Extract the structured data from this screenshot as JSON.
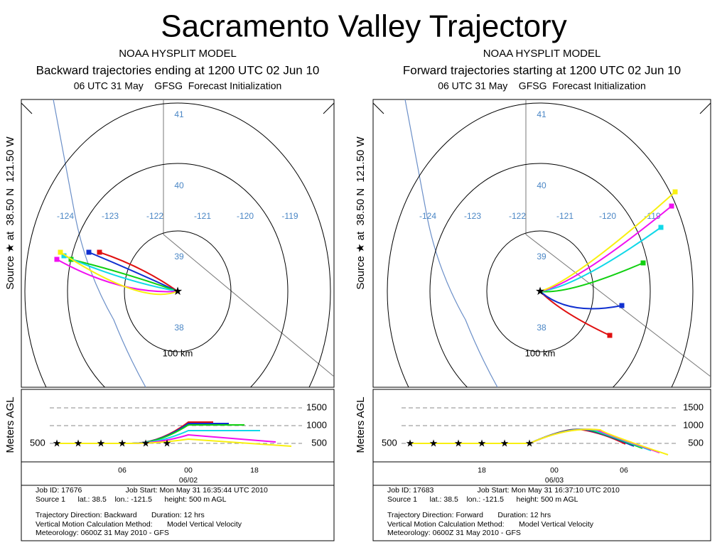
{
  "title": "Sacramento Valley Trajectory",
  "panels": [
    {
      "model": "NOAA HYSPLIT MODEL",
      "subtitle": "Backward trajectories ending at 1200 UTC 02 Jun 10",
      "init": "06 UTC 31 May    GFSG  Forecast Initialization",
      "source_label": "Source ★ at  38.50 N  121.50 W",
      "lat_labels": [
        "41",
        "40",
        "39",
        "38"
      ],
      "lon_labels": [
        "-124",
        "-123",
        "-122",
        "-121",
        "-120",
        "-119"
      ],
      "range_label": "100 km",
      "height_axis_label": "Meters AGL",
      "height_labels": [
        "1500",
        "1000",
        "500"
      ],
      "source_height_label": "500",
      "time_labels": [
        "06",
        "00",
        "18"
      ],
      "date_label": "06/02",
      "info": [
        "Job ID: 17676                     Job Start: Mon May 31 16:35:44 UTC 2010",
        "Source 1      lat.: 38.5    lon.: -121.5      height: 500 m AGL",
        "Trajectory Direction: Backward       Duration: 12 hrs",
        "Vertical Motion Calculation Method:       Model Vertical Velocity",
        "Meteorology: 0600Z 31 May 2010 - GFS"
      ]
    },
    {
      "model": "NOAA HYSPLIT MODEL",
      "subtitle": "Forward trajectories starting at 1200 UTC 02 Jun 10",
      "init": "06 UTC 31 May    GFSG  Forecast Initialization",
      "source_label": "Source ★ at  38.50 N  121.50 W",
      "lat_labels": [
        "41",
        "40",
        "39",
        "38"
      ],
      "lon_labels": [
        "-124",
        "-123",
        "-122",
        "-121",
        "-120",
        "-119"
      ],
      "range_label": "100 km",
      "height_axis_label": "Meters AGL",
      "height_labels": [
        "1500",
        "1000",
        "500"
      ],
      "source_height_label": "500",
      "time_labels": [
        "18",
        "00",
        "06"
      ],
      "date_label": "06/03",
      "info": [
        "Job ID: 17683                     Job Start: Mon May 31 16:37:10 UTC 2010",
        "Source 1      lat.: 38.5    lon.: -121.5      height: 500 m AGL",
        "Trajectory Direction: Forward       Duration: 12 hrs",
        "Vertical Motion Calculation Method:       Model Vertical Velocity",
        "Meteorology: 0600Z 31 May 2010 - GFS"
      ]
    }
  ]
}
